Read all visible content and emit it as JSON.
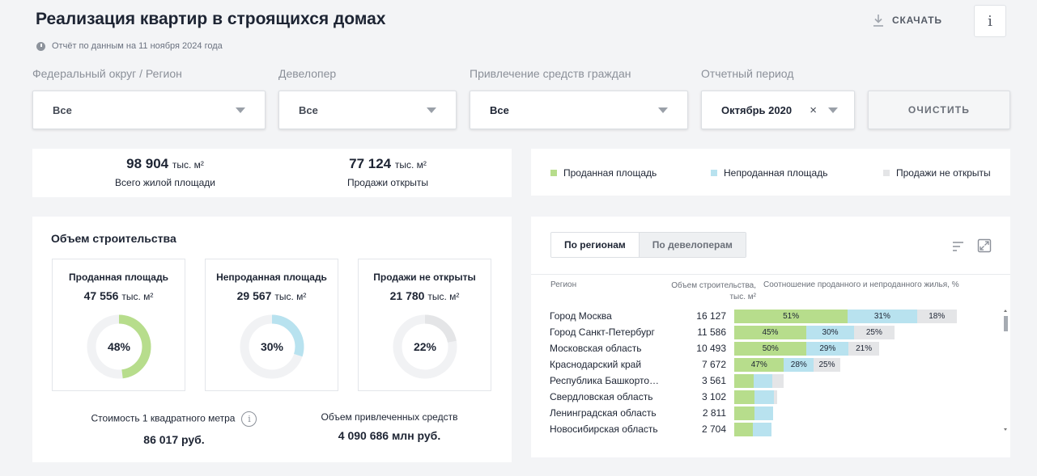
{
  "header": {
    "title": "Реализация квартир в строящихся домах",
    "report_date": "Отчёт по данным на 11 ноября 2024 года",
    "download_label": "СКАЧАТЬ",
    "info_label": "i"
  },
  "filters": [
    {
      "label": "Федеральный округ / Регион",
      "value": "Все"
    },
    {
      "label": "Девелопер",
      "value": "Все"
    },
    {
      "label": "Привлечение средств граждан",
      "value": "Все"
    },
    {
      "label": "Отчетный период",
      "value": "Октябрь 2020",
      "clear": "×"
    }
  ],
  "clear_button": "ОЧИСТИТЬ",
  "summary": {
    "total": {
      "value": "98 904",
      "unit": "тыс. м²",
      "label": "Всего жилой площади"
    },
    "open": {
      "value": "77 124",
      "unit": "тыс. м²",
      "label": "Продажи открыты"
    }
  },
  "legend": [
    {
      "label": "Проданная площадь",
      "color": "#b7dd8c"
    },
    {
      "label": "Непроданная площадь",
      "color": "#b8e2ef"
    },
    {
      "label": "Продажи не открыты",
      "color": "#e4e5e7"
    }
  ],
  "construction": {
    "title": "Объем строительства",
    "kpis": [
      {
        "title": "Проданная площадь",
        "value": "47 556",
        "unit": "тыс. м²",
        "percent": "48%",
        "fraction": 0.48,
        "color": "#b7dd8c"
      },
      {
        "title": "Непроданная площадь",
        "value": "29 567",
        "unit": "тыс. м²",
        "percent": "30%",
        "fraction": 0.3,
        "color": "#b8e2ef"
      },
      {
        "title": "Продажи не открыты",
        "value": "21 780",
        "unit": "тыс. м²",
        "percent": "22%",
        "fraction": 0.22,
        "color": "#e4e5e7"
      }
    ],
    "cost_label": "Стоимость 1 квадратного метра",
    "cost_value": "86 017 руб.",
    "funds_label": "Объем привлеченных средств",
    "funds_value": "4 090 686 млн руб."
  },
  "table": {
    "tabs": [
      "По регионам",
      "По девелоперам"
    ],
    "headers": {
      "region": "Регион",
      "volume_line1": "Объем строительства,",
      "volume_line2": "тыс. м²",
      "ratio": "Соотношение проданного и непроданного жилья, %"
    },
    "rows": [
      {
        "name": "Город Москва",
        "volume": "16 127",
        "v": 16127,
        "sold": 51,
        "unsold": 31,
        "closed": 18,
        "labels": [
          "51%",
          "31%",
          "18%"
        ]
      },
      {
        "name": "Город Санкт-Петербург",
        "volume": "11 586",
        "v": 11586,
        "sold": 45,
        "unsold": 30,
        "closed": 25,
        "labels": [
          "45%",
          "30%",
          "25%"
        ]
      },
      {
        "name": "Московская область",
        "volume": "10 493",
        "v": 10493,
        "sold": 50,
        "unsold": 29,
        "closed": 21,
        "labels": [
          "50%",
          "29%",
          "21%"
        ]
      },
      {
        "name": "Краснодарский край",
        "volume": "7 672",
        "v": 7672,
        "sold": 47,
        "unsold": 28,
        "closed": 25,
        "labels": [
          "47%",
          "28%",
          "25%"
        ]
      },
      {
        "name": "Республика Башкортостан",
        "volume": "3 561",
        "v": 3561,
        "sold": 40,
        "unsold": 38,
        "closed": 22,
        "labels": [
          "",
          "",
          ""
        ]
      },
      {
        "name": "Свердловская область",
        "volume": "3 102",
        "v": 3102,
        "sold": 48,
        "unsold": 44,
        "closed": 8,
        "labels": [
          "",
          "",
          ""
        ]
      },
      {
        "name": "Ленинградская область",
        "volume": "2 811",
        "v": 2811,
        "sold": 53,
        "unsold": 47,
        "closed": 0,
        "labels": [
          "",
          "",
          ""
        ]
      },
      {
        "name": "Новосибирская область",
        "volume": "2 704",
        "v": 2704,
        "sold": 50,
        "unsold": 50,
        "closed": 0,
        "labels": [
          "",
          "",
          ""
        ]
      }
    ]
  }
}
